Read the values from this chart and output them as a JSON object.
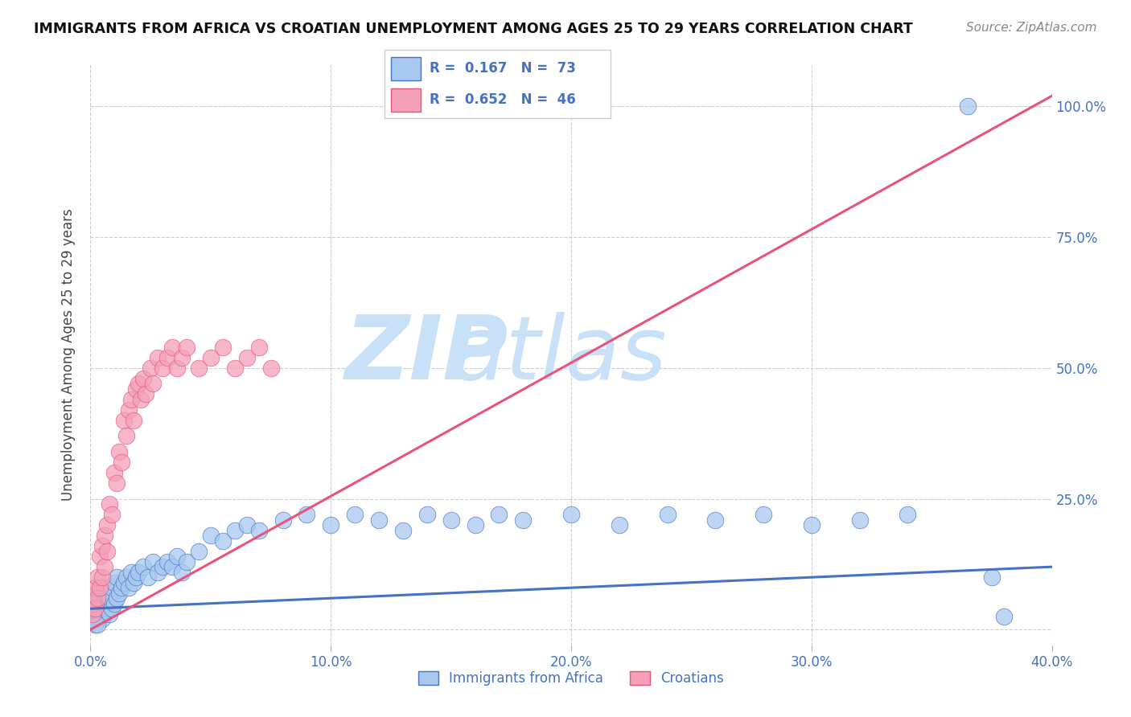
{
  "title": "IMMIGRANTS FROM AFRICA VS CROATIAN UNEMPLOYMENT AMONG AGES 25 TO 29 YEARS CORRELATION CHART",
  "source": "Source: ZipAtlas.com",
  "ylabel_label": "Unemployment Among Ages 25 to 29 years",
  "legend_label1": "Immigrants from Africa",
  "legend_label2": "Croatians",
  "R1": 0.167,
  "N1": 73,
  "R2": 0.652,
  "N2": 46,
  "color_blue": "#A8C8F0",
  "color_pink": "#F4A0B8",
  "color_line_blue": "#4472C4",
  "color_line_pink": "#E8537A",
  "watermark_zip": "ZIP",
  "watermark_atlas": "atlas",
  "watermark_color_zip": "#C8E0F8",
  "watermark_color_atlas": "#C8E0F8",
  "xmin": 0.0,
  "xmax": 0.4,
  "ymin": -0.03,
  "ymax": 1.08,
  "blue_x": [
    0.001,
    0.001,
    0.002,
    0.002,
    0.003,
    0.003,
    0.003,
    0.004,
    0.004,
    0.005,
    0.005,
    0.005,
    0.006,
    0.006,
    0.007,
    0.007,
    0.008,
    0.008,
    0.009,
    0.009,
    0.01,
    0.01,
    0.011,
    0.011,
    0.012,
    0.013,
    0.014,
    0.015,
    0.016,
    0.017,
    0.018,
    0.019,
    0.02,
    0.022,
    0.024,
    0.026,
    0.028,
    0.03,
    0.032,
    0.034,
    0.036,
    0.038,
    0.04,
    0.045,
    0.05,
    0.055,
    0.06,
    0.065,
    0.07,
    0.08,
    0.09,
    0.1,
    0.11,
    0.12,
    0.13,
    0.14,
    0.15,
    0.16,
    0.17,
    0.18,
    0.2,
    0.22,
    0.24,
    0.26,
    0.28,
    0.3,
    0.32,
    0.34,
    0.365,
    0.375,
    0.38,
    0.002,
    0.003
  ],
  "blue_y": [
    0.02,
    0.04,
    0.03,
    0.06,
    0.02,
    0.05,
    0.07,
    0.03,
    0.06,
    0.02,
    0.05,
    0.08,
    0.03,
    0.06,
    0.04,
    0.07,
    0.03,
    0.06,
    0.04,
    0.08,
    0.05,
    0.09,
    0.06,
    0.1,
    0.07,
    0.08,
    0.09,
    0.1,
    0.08,
    0.11,
    0.09,
    0.1,
    0.11,
    0.12,
    0.1,
    0.13,
    0.11,
    0.12,
    0.13,
    0.12,
    0.14,
    0.11,
    0.13,
    0.15,
    0.18,
    0.17,
    0.19,
    0.2,
    0.19,
    0.21,
    0.22,
    0.2,
    0.22,
    0.21,
    0.19,
    0.22,
    0.21,
    0.2,
    0.22,
    0.21,
    0.22,
    0.2,
    0.22,
    0.21,
    0.22,
    0.2,
    0.21,
    0.22,
    1.0,
    0.1,
    0.025,
    0.01,
    0.01
  ],
  "pink_x": [
    0.001,
    0.001,
    0.002,
    0.002,
    0.003,
    0.003,
    0.004,
    0.004,
    0.005,
    0.005,
    0.006,
    0.006,
    0.007,
    0.007,
    0.008,
    0.009,
    0.01,
    0.011,
    0.012,
    0.013,
    0.014,
    0.015,
    0.016,
    0.017,
    0.018,
    0.019,
    0.02,
    0.021,
    0.022,
    0.023,
    0.025,
    0.026,
    0.028,
    0.03,
    0.032,
    0.034,
    0.036,
    0.038,
    0.04,
    0.045,
    0.05,
    0.055,
    0.06,
    0.065,
    0.07,
    0.075
  ],
  "pink_y": [
    0.03,
    0.05,
    0.04,
    0.08,
    0.06,
    0.1,
    0.08,
    0.14,
    0.1,
    0.16,
    0.12,
    0.18,
    0.15,
    0.2,
    0.24,
    0.22,
    0.3,
    0.28,
    0.34,
    0.32,
    0.4,
    0.37,
    0.42,
    0.44,
    0.4,
    0.46,
    0.47,
    0.44,
    0.48,
    0.45,
    0.5,
    0.47,
    0.52,
    0.5,
    0.52,
    0.54,
    0.5,
    0.52,
    0.54,
    0.5,
    0.52,
    0.54,
    0.5,
    0.52,
    0.54,
    0.5
  ],
  "blue_trend_x": [
    0.0,
    0.4
  ],
  "blue_trend_y": [
    0.04,
    0.12
  ],
  "pink_trend_x": [
    0.0,
    0.4
  ],
  "pink_trend_y": [
    0.0,
    1.02
  ]
}
